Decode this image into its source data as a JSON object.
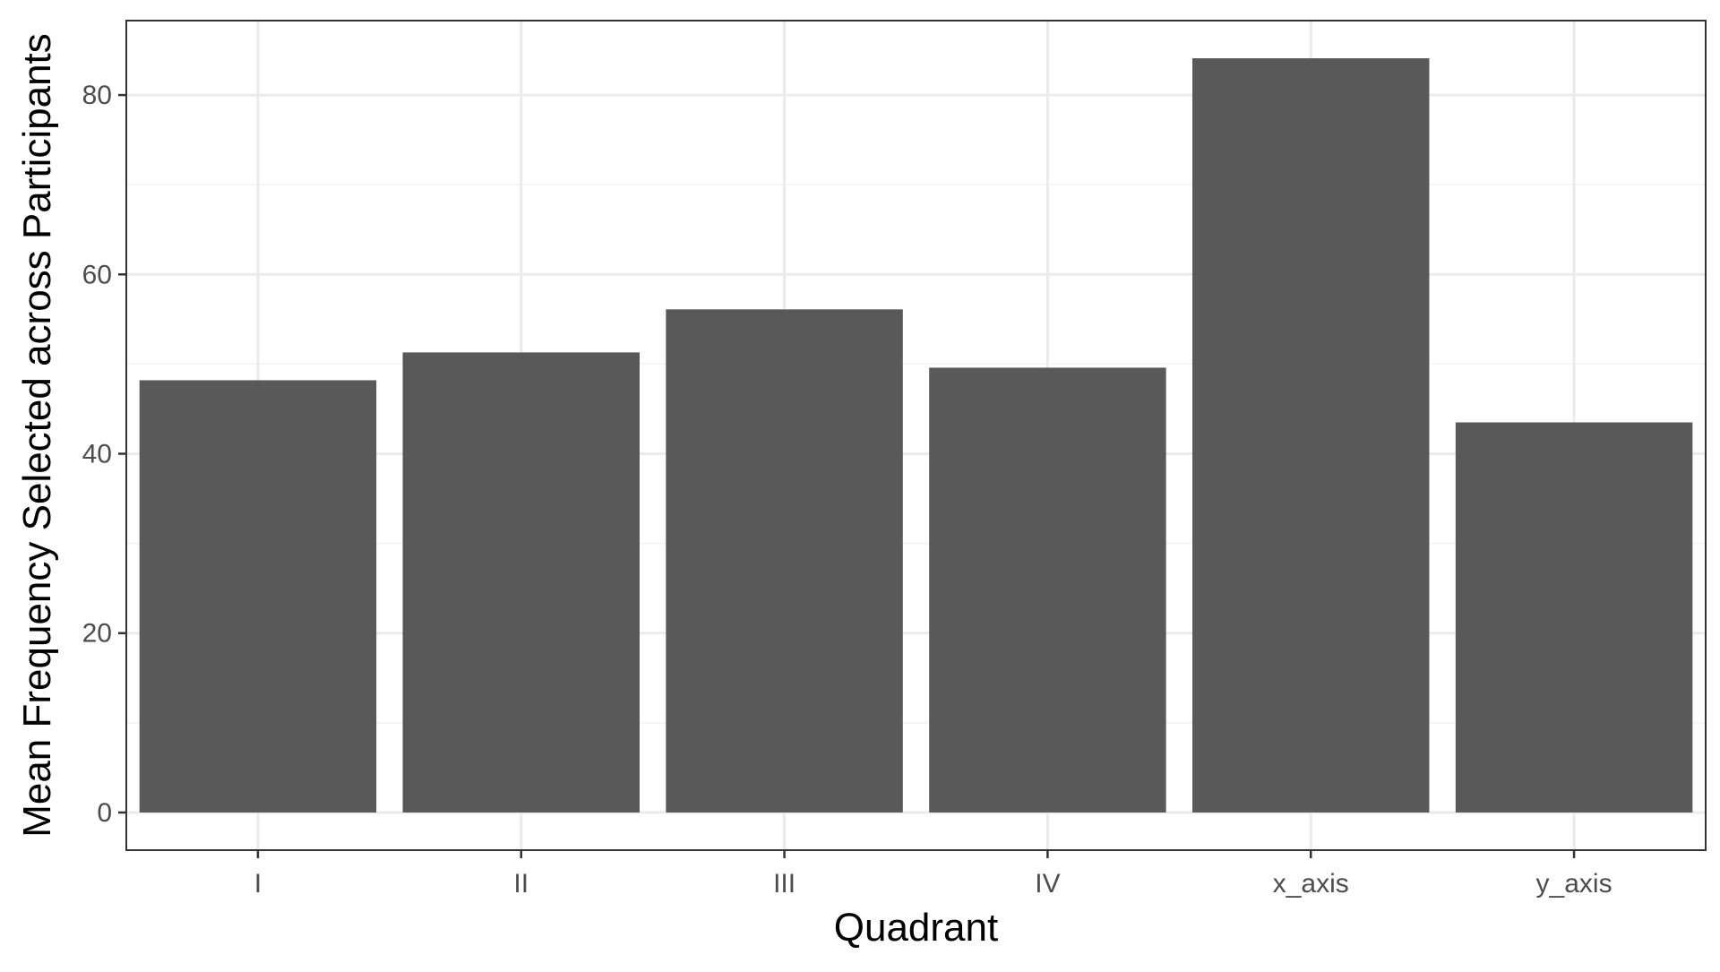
{
  "chart_data": {
    "type": "bar",
    "title": "",
    "xlabel": "Quadrant",
    "ylabel": "Mean Frequency Selected across Participants",
    "categories": [
      "I",
      "II",
      "III",
      "IV",
      "x_axis",
      "y_axis"
    ],
    "values": [
      48.2,
      51.3,
      56.1,
      49.6,
      84.1,
      43.5
    ],
    "ylim": [
      -4.2,
      88.3
    ],
    "yticks": [
      0,
      20,
      40,
      60,
      80
    ],
    "ytick_labels": [
      "0",
      "20",
      "40",
      "60",
      "80"
    ],
    "grid": true,
    "legend": "none",
    "colors": {
      "bar": "#595959",
      "panel_border": "#333333",
      "grid_major": "#ebebeb",
      "grid_minor": "#f2f2f2",
      "tick_label": "#4d4d4d",
      "axis_title": "#000000",
      "background": "#ffffff"
    }
  }
}
